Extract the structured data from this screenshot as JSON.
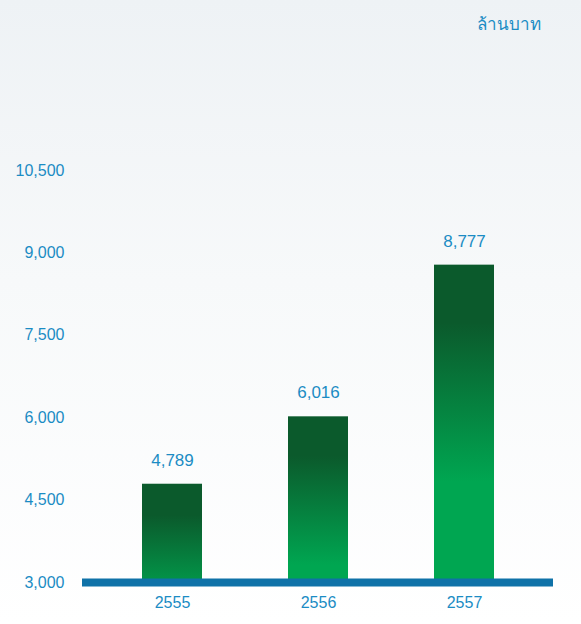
{
  "chart_data": {
    "type": "bar",
    "ylabel": "ล้านบาท",
    "categories": [
      "2555",
      "2556",
      "2557"
    ],
    "values": [
      4789,
      6016,
      8777
    ],
    "value_labels": [
      "4,789",
      "6,016",
      "8,777"
    ],
    "data_labels": true,
    "color": "#00a651",
    "ylim": [
      3000,
      10500
    ],
    "yticks": [
      {
        "value": 3000,
        "label": "3,000"
      },
      {
        "value": 4500,
        "label": "4,500"
      },
      {
        "value": 6000,
        "label": "6,000"
      },
      {
        "value": 7500,
        "label": "7,500"
      },
      {
        "value": 9000,
        "label": "9,000"
      },
      {
        "value": 10500,
        "label": "10,500"
      }
    ],
    "grid": false
  }
}
